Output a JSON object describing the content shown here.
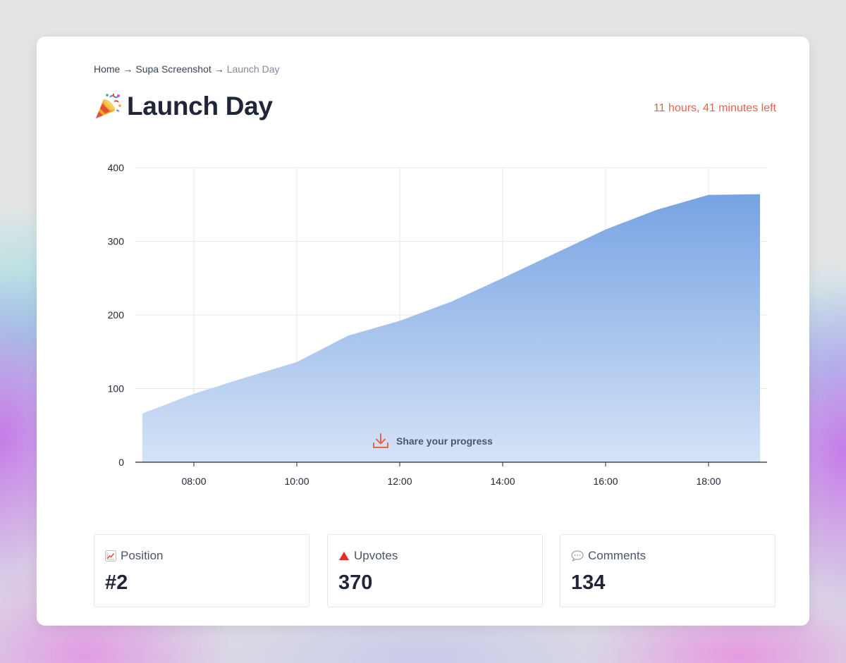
{
  "breadcrumb": {
    "home": "Home",
    "separator": "→",
    "product": "Supa Screenshot",
    "current": "Launch Day"
  },
  "page": {
    "title": "Launch Day",
    "title_icon": "party-popper-icon",
    "time_left": "11 hours, 41 minutes left"
  },
  "share": {
    "label": "Share your progress",
    "icon": "download-icon"
  },
  "stats": [
    {
      "icon": "chart-increasing-icon",
      "label": "Position",
      "value": "#2"
    },
    {
      "icon": "red-triangle-icon",
      "label": "Upvotes",
      "value": "370"
    },
    {
      "icon": "speech-bubble-icon",
      "label": "Comments",
      "value": "134"
    }
  ],
  "colors": {
    "accent": "#e6644a",
    "area_top": "#77a3e2",
    "area_bottom": "#d3e1f6",
    "text_dark": "#1e2637"
  },
  "chart_data": {
    "type": "area",
    "x": [
      "07:00",
      "08:00",
      "09:00",
      "10:00",
      "11:00",
      "12:00",
      "13:00",
      "14:00",
      "15:00",
      "16:00",
      "17:00",
      "18:00",
      "19:00"
    ],
    "values": [
      66,
      93,
      115,
      136,
      172,
      192,
      218,
      250,
      283,
      316,
      343,
      363,
      364
    ],
    "xticks": [
      "08:00",
      "10:00",
      "12:00",
      "14:00",
      "16:00",
      "18:00"
    ],
    "yticks": [
      "0",
      "100",
      "200",
      "300",
      "400"
    ],
    "ylim": [
      0,
      400
    ],
    "grid": true,
    "legend": "none"
  }
}
